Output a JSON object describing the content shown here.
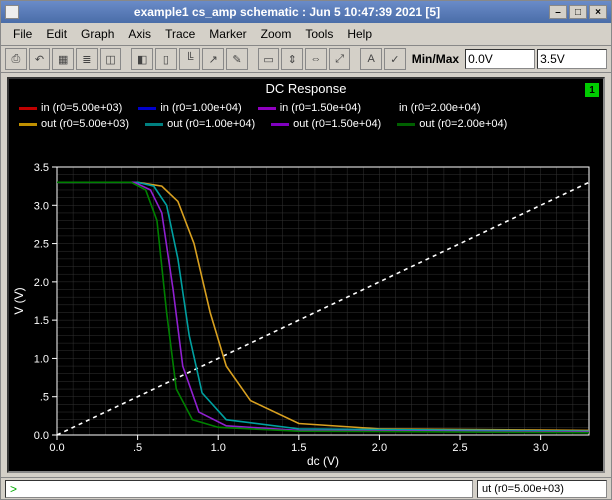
{
  "window": {
    "title": "example1 cs_amp schematic : Jun  5 10:47:39 2021 [5]"
  },
  "menubar": [
    "File",
    "Edit",
    "Graph",
    "Axis",
    "Trace",
    "Marker",
    "Zoom",
    "Tools",
    "Help"
  ],
  "toolbar": {
    "minmax_label": "Min/Max",
    "min_value": "0.0V",
    "max_value": "3.5V"
  },
  "chart": {
    "title": "DC Response",
    "badge": "1",
    "xlabel": "dc (V)",
    "ylabel": "V (V)",
    "xlim": [
      0.0,
      3.3
    ],
    "ylim": [
      0.0,
      3.5
    ],
    "xticks": [
      0.0,
      0.5,
      1.0,
      1.5,
      2.0,
      2.5,
      3.0
    ],
    "xtick_labels": [
      "0.0",
      ".5",
      "1.0",
      "1.5",
      "2.0",
      "2.5",
      "3.0"
    ],
    "yticks": [
      0.0,
      0.5,
      1.0,
      1.5,
      2.0,
      2.5,
      3.0,
      3.5
    ],
    "ytick_labels": [
      "0.0",
      ".5",
      "1.0",
      "1.5",
      "2.0",
      "2.5",
      "3.0",
      "3.5"
    ],
    "grid_color": "#333333",
    "axis_color": "#ffffff",
    "background_color": "#000000",
    "tick_fontsize": 11,
    "label_fontsize": 12,
    "legend": [
      {
        "label": "in (r0=5.00e+03)",
        "color": "#c00000"
      },
      {
        "label": "in (r0=1.00e+04)",
        "color": "#0000cc"
      },
      {
        "label": "in (r0=1.50e+04)",
        "color": "#9000c0"
      },
      {
        "label": "in (r0=2.00e+04)",
        "color": "#000000"
      },
      {
        "label": "out (r0=5.00e+03)",
        "color": "#c09000"
      },
      {
        "label": "out (r0=1.00e+04)",
        "color": "#008080"
      },
      {
        "label": "out (r0=1.50e+04)",
        "color": "#8000c0"
      },
      {
        "label": "out (r0=2.00e+04)",
        "color": "#006000"
      }
    ],
    "series": [
      {
        "name": "in",
        "color": "#ffffff",
        "dash": "4,4",
        "points": [
          [
            0,
            0
          ],
          [
            3.3,
            3.3
          ]
        ]
      },
      {
        "name": "out r0=5k",
        "color": "#d8a020",
        "dash": "",
        "points": [
          [
            0,
            3.3
          ],
          [
            0.5,
            3.3
          ],
          [
            0.65,
            3.25
          ],
          [
            0.75,
            3.05
          ],
          [
            0.85,
            2.5
          ],
          [
            0.95,
            1.6
          ],
          [
            1.05,
            0.9
          ],
          [
            1.2,
            0.45
          ],
          [
            1.5,
            0.15
          ],
          [
            2.0,
            0.08
          ],
          [
            3.3,
            0.06
          ]
        ]
      },
      {
        "name": "out r0=10k",
        "color": "#00a0a0",
        "dash": "",
        "points": [
          [
            0,
            3.3
          ],
          [
            0.5,
            3.3
          ],
          [
            0.6,
            3.25
          ],
          [
            0.68,
            3.0
          ],
          [
            0.75,
            2.3
          ],
          [
            0.82,
            1.3
          ],
          [
            0.9,
            0.55
          ],
          [
            1.05,
            0.2
          ],
          [
            1.5,
            0.08
          ],
          [
            3.3,
            0.05
          ]
        ]
      },
      {
        "name": "out r0=15k",
        "color": "#9020d0",
        "dash": "",
        "points": [
          [
            0,
            3.3
          ],
          [
            0.48,
            3.3
          ],
          [
            0.58,
            3.2
          ],
          [
            0.65,
            2.9
          ],
          [
            0.72,
            1.9
          ],
          [
            0.78,
            0.9
          ],
          [
            0.88,
            0.3
          ],
          [
            1.05,
            0.12
          ],
          [
            1.5,
            0.06
          ],
          [
            3.3,
            0.04
          ]
        ]
      },
      {
        "name": "out r0=20k",
        "color": "#008000",
        "dash": "",
        "points": [
          [
            0,
            3.3
          ],
          [
            0.46,
            3.3
          ],
          [
            0.55,
            3.2
          ],
          [
            0.62,
            2.8
          ],
          [
            0.68,
            1.6
          ],
          [
            0.74,
            0.6
          ],
          [
            0.84,
            0.2
          ],
          [
            1.0,
            0.1
          ],
          [
            1.5,
            0.05
          ],
          [
            3.3,
            0.03
          ]
        ]
      }
    ]
  },
  "status": {
    "prompt": ">",
    "readout": "ut (r0=5.00e+03)"
  }
}
